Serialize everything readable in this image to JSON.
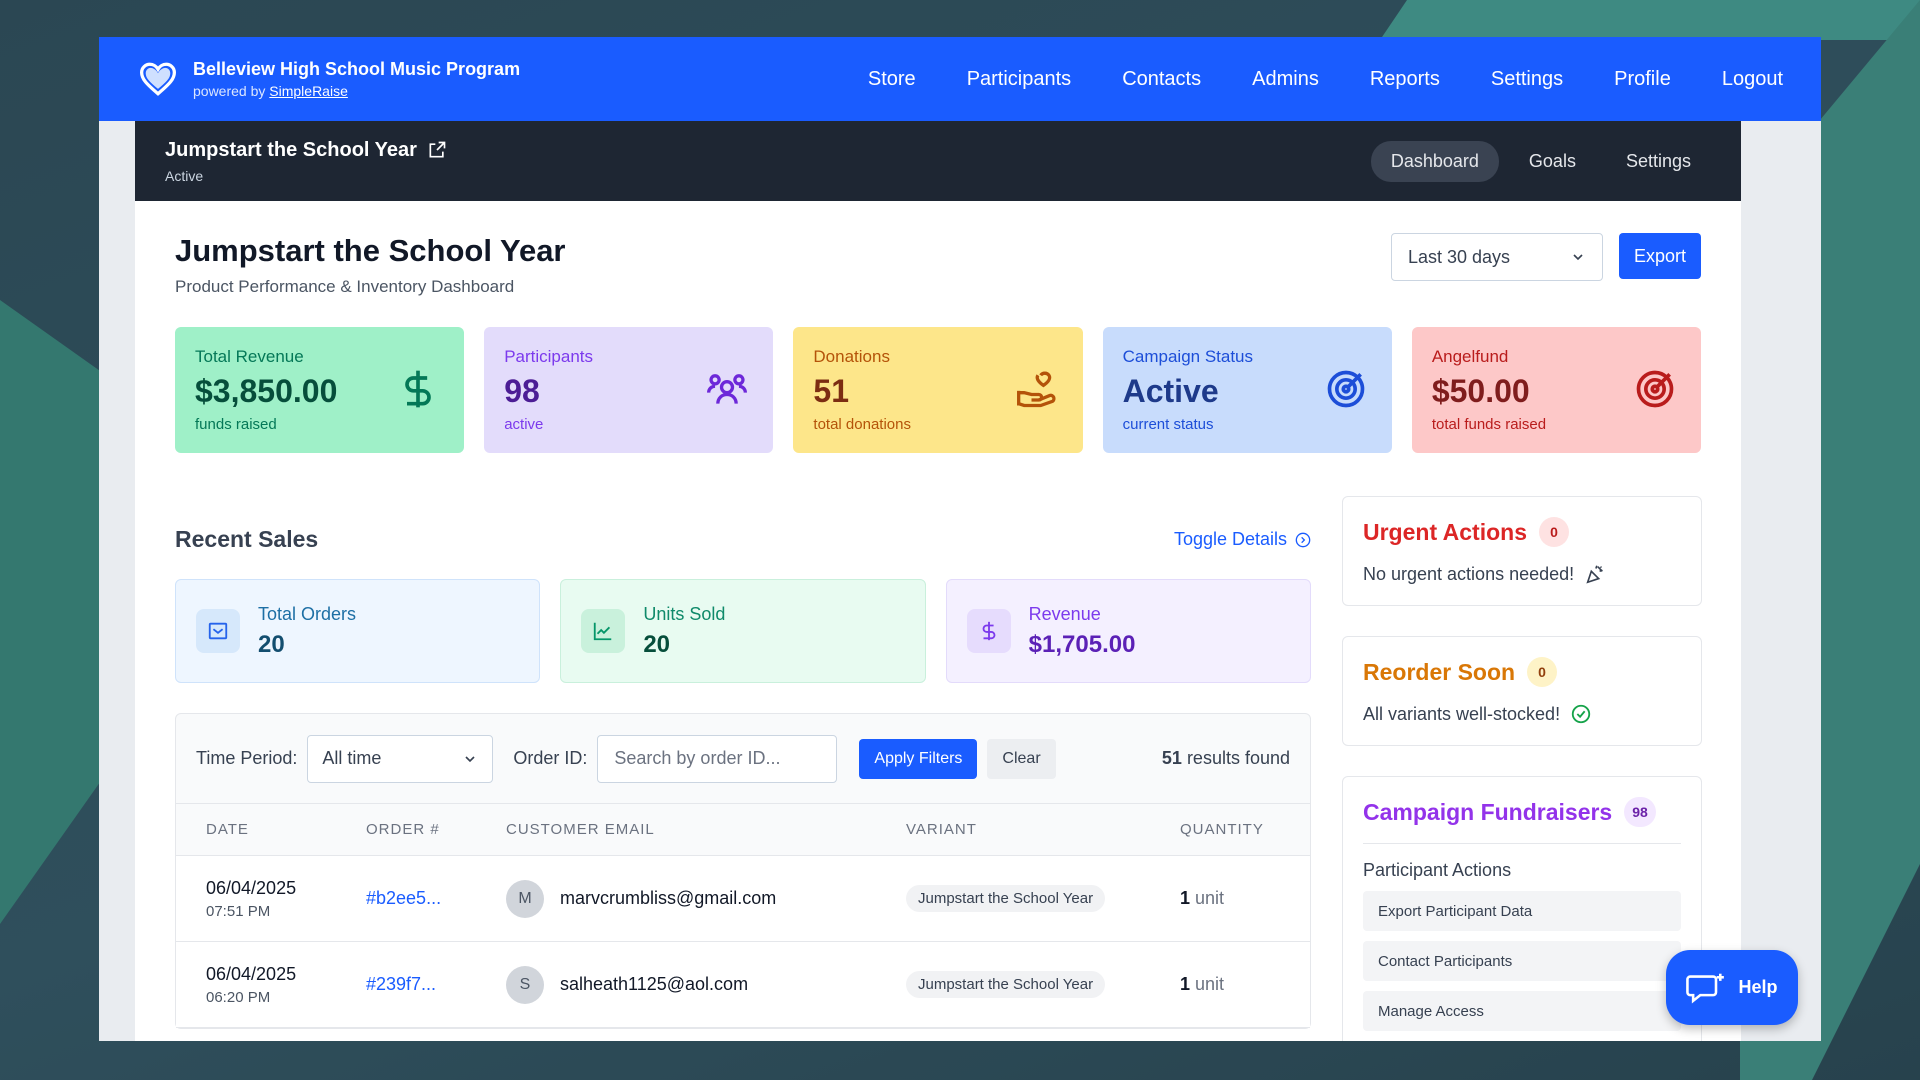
{
  "app": {
    "title": "Belleview High School Music Program",
    "powered_prefix": "powered by",
    "powered_link": "SimpleRaise"
  },
  "nav": [
    "Store",
    "Participants",
    "Contacts",
    "Admins",
    "Reports",
    "Settings",
    "Profile",
    "Logout"
  ],
  "campaign": {
    "title": "Jumpstart the School Year",
    "status": "Active",
    "tabs": [
      "Dashboard",
      "Goals",
      "Settings"
    ],
    "active_tab": "Dashboard"
  },
  "page": {
    "title": "Jumpstart the School Year",
    "subtitle": "Product Performance & Inventory Dashboard",
    "range_select": "Last 30 days",
    "export_label": "Export"
  },
  "stats": [
    {
      "label": "Total Revenue",
      "value": "$3,850.00",
      "note": "funds raised",
      "icon": "dollar-icon",
      "theme": "green"
    },
    {
      "label": "Participants",
      "value": "98",
      "note": "active",
      "icon": "users-icon",
      "theme": "purple"
    },
    {
      "label": "Donations",
      "value": "51",
      "note": "total donations",
      "icon": "hand-heart-icon",
      "theme": "yellow"
    },
    {
      "label": "Campaign Status",
      "value": "Active",
      "note": "current status",
      "icon": "target-icon",
      "theme": "blue"
    },
    {
      "label": "Angelfund",
      "value": "$50.00",
      "note": "total funds raised",
      "icon": "target-icon",
      "theme": "red"
    }
  ],
  "recent_sales": {
    "title": "Recent Sales",
    "toggle_label": "Toggle Details",
    "summary": [
      {
        "label": "Total Orders",
        "value": "20",
        "icon": "inbox-icon"
      },
      {
        "label": "Units Sold",
        "value": "20",
        "icon": "chart-icon"
      },
      {
        "label": "Revenue",
        "value": "$1,705.00",
        "icon": "dollar-icon"
      }
    ],
    "filters": {
      "period_label": "Time Period:",
      "period_value": "All time",
      "order_label": "Order ID:",
      "order_placeholder": "Search by order ID...",
      "apply_label": "Apply Filters",
      "clear_label": "Clear",
      "results_count": "51",
      "results_suffix": "results found"
    },
    "columns": [
      "DATE",
      "ORDER #",
      "CUSTOMER EMAIL",
      "VARIANT",
      "QUANTITY"
    ],
    "rows": [
      {
        "date": "06/04/2025",
        "time": "07:51 PM",
        "order": "#b2ee5...",
        "initial": "M",
        "email": "marvcrumbliss@gmail.com",
        "variant": "Jumpstart the School Year",
        "qty": "1",
        "unit": "unit"
      },
      {
        "date": "06/04/2025",
        "time": "06:20 PM",
        "order": "#239f7...",
        "initial": "S",
        "email": "salheath1125@aol.com",
        "variant": "Jumpstart the School Year",
        "qty": "1",
        "unit": "unit"
      }
    ]
  },
  "sidebar": {
    "urgent": {
      "title": "Urgent Actions",
      "count": "0",
      "text": "No urgent actions needed!"
    },
    "reorder": {
      "title": "Reorder Soon",
      "count": "0",
      "text": "All variants well-stocked!"
    },
    "fundraisers": {
      "title": "Campaign Fundraisers",
      "count": "98",
      "actions_label": "Participant Actions",
      "actions": [
        "Export Participant Data",
        "Contact Participants",
        "Manage Access"
      ]
    }
  },
  "help_label": "Help"
}
